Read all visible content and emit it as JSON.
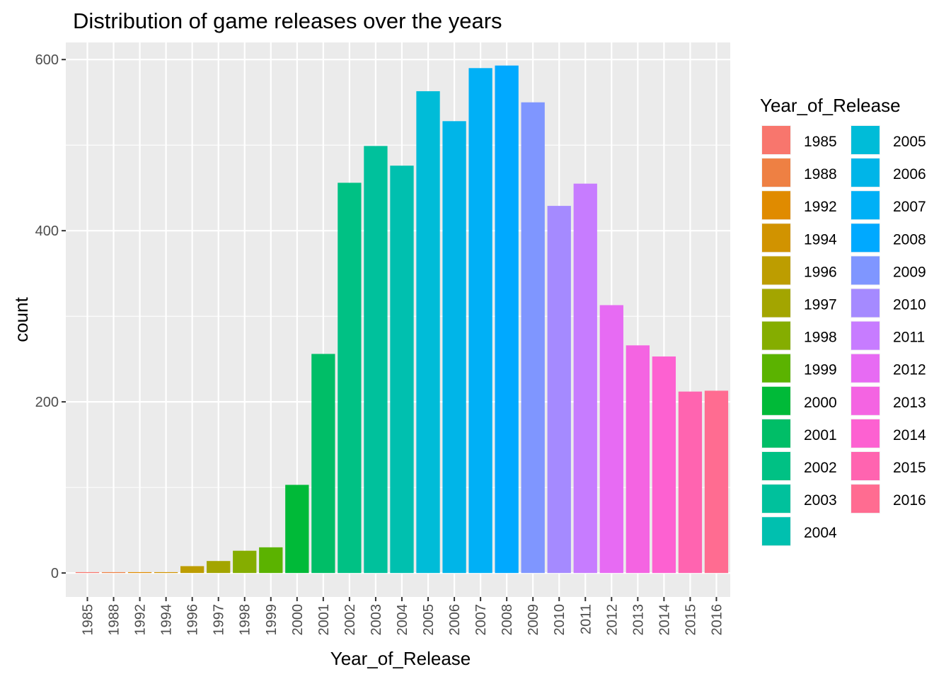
{
  "chart_data": {
    "type": "bar",
    "title": "Distribution of game releases over the years",
    "xlabel": "Year_of_Release",
    "ylabel": "count",
    "ylim": [
      -28,
      620
    ],
    "yticks": [
      0,
      200,
      400,
      600
    ],
    "grid": true,
    "legend_placement": "right",
    "legend_title": "Year_of_Release",
    "categories": [
      "1985",
      "1988",
      "1992",
      "1994",
      "1996",
      "1997",
      "1998",
      "1999",
      "2000",
      "2001",
      "2002",
      "2003",
      "2004",
      "2005",
      "2006",
      "2007",
      "2008",
      "2009",
      "2010",
      "2011",
      "2012",
      "2013",
      "2014",
      "2015",
      "2016"
    ],
    "values": [
      1,
      1,
      1,
      1,
      8,
      14,
      26,
      30,
      103,
      256,
      456,
      499,
      476,
      563,
      528,
      590,
      593,
      550,
      429,
      455,
      313,
      266,
      253,
      212,
      213
    ],
    "colors": [
      "#F8766D",
      "#EE8043",
      "#E08B00",
      "#D19300",
      "#BD9D00",
      "#A3A500",
      "#85AD00",
      "#5BB300",
      "#00BA38",
      "#00BE67",
      "#00C184",
      "#00C19C",
      "#00C0AF",
      "#00BCD8",
      "#00B5E8",
      "#00B0F6",
      "#00A9FF",
      "#7F96FF",
      "#A58AFF",
      "#C77CFF",
      "#E76BF3",
      "#F464E2",
      "#FD61D1",
      "#FF64B0",
      "#FF6C91"
    ]
  }
}
